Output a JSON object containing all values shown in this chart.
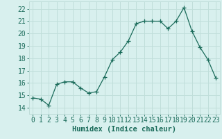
{
  "x": [
    0,
    1,
    2,
    3,
    4,
    5,
    6,
    7,
    8,
    9,
    10,
    11,
    12,
    13,
    14,
    15,
    16,
    17,
    18,
    19,
    20,
    21,
    22,
    23
  ],
  "y": [
    14.8,
    14.7,
    14.2,
    15.9,
    16.1,
    16.1,
    15.6,
    15.2,
    15.3,
    16.5,
    17.9,
    18.5,
    19.4,
    20.8,
    21.0,
    21.0,
    21.0,
    20.4,
    21.0,
    22.1,
    20.2,
    18.9,
    17.9,
    16.4
  ],
  "line_color": "#1a6b5a",
  "bg_color": "#d8f0ee",
  "grid_color": "#c0deda",
  "xlabel": "Humidex (Indice chaleur)",
  "ylabel_ticks": [
    14,
    15,
    16,
    17,
    18,
    19,
    20,
    21,
    22
  ],
  "ylim": [
    13.5,
    22.6
  ],
  "xlim": [
    -0.5,
    23.5
  ],
  "font_color": "#1a6b5a",
  "xlabel_fontsize": 7.5,
  "tick_fontsize": 7
}
